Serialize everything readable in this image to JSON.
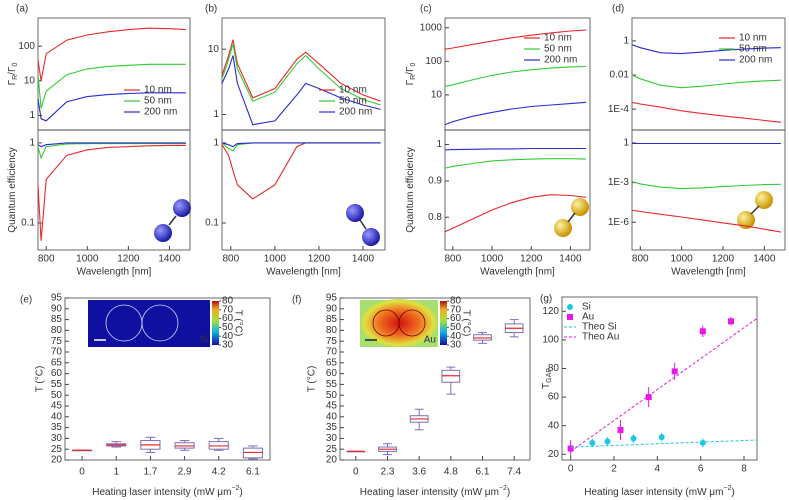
{
  "chart_data": [
    {
      "type": "line",
      "panel": "(a)",
      "yscale": "log",
      "legend": "lower right",
      "ylabel_parts": [
        "Γ",
        "R",
        "/Γ",
        "0"
      ],
      "xlim": [
        760,
        1500
      ],
      "ylim": [
        0.38,
        650
      ],
      "yticks": [
        1,
        10,
        100
      ],
      "x": [
        760,
        775,
        800,
        900,
        1000,
        1100,
        1200,
        1300,
        1400,
        1480
      ],
      "series": [
        {
          "name": "10 nm",
          "color": "#e8292b",
          "values": [
            40,
            10,
            60,
            150,
            210,
            260,
            300,
            330,
            320,
            300
          ]
        },
        {
          "name": "50 nm",
          "color": "#33cc33",
          "values": [
            15,
            1.6,
            5,
            15,
            22,
            26,
            28,
            30,
            30,
            30
          ]
        },
        {
          "name": "200 nm",
          "color": "#2a2ad0",
          "values": [
            3,
            0.8,
            0.7,
            2.5,
            3.5,
            4,
            4.3,
            4.5,
            4.5,
            4.5
          ]
        }
      ]
    },
    {
      "type": "line",
      "yscale": "log",
      "ylabel_parts": [
        "Quantum efficiency"
      ],
      "xlabel": "Wavelength [nm]",
      "xlim": [
        760,
        1500
      ],
      "ylim": [
        0.046,
        1.45
      ],
      "yticks": [
        0.1,
        1
      ],
      "xticks": [
        800,
        1000,
        1200,
        1400
      ],
      "x": [
        760,
        775,
        800,
        900,
        1000,
        1100,
        1200,
        1300,
        1400,
        1480
      ],
      "series": [
        {
          "color": "#e8292b",
          "values": [
            0.3,
            0.06,
            0.35,
            0.7,
            0.82,
            0.88,
            0.9,
            0.92,
            0.93,
            0.93
          ]
        },
        {
          "color": "#33cc33",
          "values": [
            0.9,
            0.65,
            0.9,
            0.97,
            0.98,
            0.98,
            0.98,
            0.98,
            0.98,
            0.98
          ]
        },
        {
          "color": "#2a2ad0",
          "values": [
            0.95,
            0.9,
            0.95,
            1,
            1,
            1,
            1,
            1,
            1,
            1
          ]
        }
      ]
    },
    {
      "type": "line",
      "panel": "(b)",
      "yscale": "log",
      "legend": "lower right",
      "xlim": [
        760,
        1500
      ],
      "ylim": [
        0.58,
        30
      ],
      "yticks": [
        1,
        10
      ],
      "x": [
        760,
        790,
        810,
        830,
        900,
        1000,
        1100,
        1140,
        1200,
        1300,
        1400,
        1480
      ],
      "series": [
        {
          "name": "10 nm",
          "color": "#e8292b",
          "values": [
            4,
            8,
            14,
            6,
            1.8,
            2.5,
            7,
            9,
            6,
            3,
            2,
            1.6
          ]
        },
        {
          "name": "50 nm",
          "color": "#33cc33",
          "values": [
            3.5,
            7,
            12,
            5,
            1.6,
            2.2,
            6,
            8,
            5,
            2.5,
            1.7,
            1.4
          ]
        },
        {
          "name": "200 nm",
          "color": "#2a2ad0",
          "values": [
            3,
            5,
            8,
            3,
            0.7,
            0.8,
            2,
            3,
            2.5,
            1.8,
            1.4,
            1.2
          ]
        }
      ]
    },
    {
      "type": "line",
      "yscale": "log",
      "xlabel": "Wavelength [nm]",
      "xlim": [
        760,
        1500
      ],
      "ylim": [
        0.046,
        1.45
      ],
      "yticks": [
        0.1,
        1
      ],
      "xticks": [
        800,
        1000,
        1200,
        1400
      ],
      "x": [
        760,
        790,
        810,
        830,
        900,
        1000,
        1100,
        1140,
        1200,
        1300,
        1400,
        1480
      ],
      "series": [
        {
          "color": "#e8292b",
          "values": [
            0.95,
            0.7,
            0.45,
            0.3,
            0.2,
            0.3,
            0.9,
            1,
            1,
            1,
            1,
            1
          ]
        },
        {
          "color": "#33cc33",
          "values": [
            1,
            0.85,
            0.8,
            0.95,
            1,
            1,
            1,
            1,
            1,
            1,
            1,
            1
          ]
        },
        {
          "color": "#2a2ad0",
          "values": [
            1,
            0.95,
            0.9,
            0.98,
            1,
            1,
            1,
            1,
            1,
            1,
            1,
            1
          ]
        }
      ]
    },
    {
      "type": "line",
      "panel": "(c)",
      "yscale": "log",
      "legend": "upper right",
      "ylabel_parts": [
        "Γ",
        "R",
        "/Γ",
        "0"
      ],
      "xlim": [
        760,
        1500
      ],
      "ylim": [
        0.9,
        1950
      ],
      "yticks": [
        10,
        100,
        1000
      ],
      "x": [
        760,
        800,
        900,
        1000,
        1100,
        1200,
        1300,
        1400,
        1480
      ],
      "series": [
        {
          "name": "10 nm",
          "color": "#e8292b",
          "values": [
            230,
            250,
            320,
            400,
            500,
            600,
            700,
            800,
            850
          ]
        },
        {
          "name": "50 nm",
          "color": "#33cc33",
          "values": [
            18,
            20,
            28,
            38,
            48,
            56,
            63,
            68,
            70
          ]
        },
        {
          "name": "200 nm",
          "color": "#2a2ad0",
          "values": [
            1.3,
            1.6,
            2.3,
            3,
            3.8,
            4.5,
            5,
            5.5,
            6
          ]
        }
      ]
    },
    {
      "type": "line",
      "yscale": "linear",
      "ylabel_parts": [
        "Quantum efficiency"
      ],
      "xlabel": "Wavelength [nm]",
      "xlim": [
        760,
        1500
      ],
      "ylim": [
        0.71,
        1.04
      ],
      "yticks": [
        0.8,
        0.9,
        1
      ],
      "xticks": [
        800,
        1000,
        1200,
        1400
      ],
      "x": [
        760,
        800,
        900,
        1000,
        1100,
        1200,
        1300,
        1400,
        1480
      ],
      "series": [
        {
          "color": "#e8292b",
          "values": [
            0.76,
            0.77,
            0.795,
            0.82,
            0.84,
            0.855,
            0.862,
            0.86,
            0.855
          ]
        },
        {
          "color": "#33cc33",
          "values": [
            0.935,
            0.94,
            0.948,
            0.955,
            0.958,
            0.96,
            0.961,
            0.961,
            0.96
          ]
        },
        {
          "color": "#2a2ad0",
          "values": [
            0.985,
            0.986,
            0.987,
            0.988,
            0.988,
            0.989,
            0.989,
            0.989,
            0.989
          ]
        }
      ]
    },
    {
      "type": "line",
      "panel": "(d)",
      "yscale": "log",
      "legend": "upper right",
      "xlim": [
        760,
        1500
      ],
      "ylim": [
        6e-06,
        22
      ],
      "yticks": [
        {
          "value": 0.0001,
          "label": "1E-4"
        },
        0.01,
        1
      ],
      "x": [
        760,
        800,
        900,
        1000,
        1100,
        1200,
        1300,
        1400,
        1480
      ],
      "series": [
        {
          "name": "10 nm",
          "color": "#e8292b",
          "values": [
            0.00025,
            0.0002,
            0.00013,
            8e-05,
            5.5e-05,
            4e-05,
            3e-05,
            2.2e-05,
            1.7e-05
          ]
        },
        {
          "name": "50 nm",
          "color": "#33cc33",
          "values": [
            0.01,
            0.006,
            0.0025,
            0.0018,
            0.0022,
            0.003,
            0.0038,
            0.0045,
            0.005
          ]
        },
        {
          "name": "200 nm",
          "color": "#2a2ad0",
          "values": [
            0.6,
            0.4,
            0.2,
            0.18,
            0.22,
            0.28,
            0.33,
            0.38,
            0.4
          ]
        }
      ]
    },
    {
      "type": "line",
      "yscale": "log",
      "xlabel": "Wavelength [nm]",
      "xlim": [
        760,
        1500
      ],
      "ylim": [
        8e-09,
        9.5
      ],
      "yticks": [
        {
          "value": 1e-06,
          "label": "1E-6"
        },
        {
          "value": 0.001,
          "label": "1E-3"
        },
        1
      ],
      "xticks": [
        800,
        1000,
        1200,
        1400
      ],
      "x": [
        760,
        800,
        900,
        1000,
        1100,
        1200,
        1300,
        1400,
        1480
      ],
      "series": [
        {
          "color": "#e8292b",
          "values": [
            8e-06,
            6.5e-06,
            4e-06,
            2.5e-06,
            1.5e-06,
            9e-07,
            5.5e-07,
            3e-07,
            1.8e-07
          ]
        },
        {
          "color": "#33cc33",
          "values": [
            0.0012,
            0.0008,
            0.00045,
            0.00035,
            0.0004,
            0.0005,
            0.0006,
            0.0007,
            0.00075
          ]
        },
        {
          "color": "#2a2ad0",
          "values": [
            0.9,
            0.9,
            0.9,
            0.9,
            0.9,
            0.9,
            0.9,
            0.9,
            0.9
          ]
        }
      ]
    },
    {
      "type": "box",
      "panel": "(e)",
      "ylabel": "T (°C)",
      "xlabel_parts": [
        "Heating laser intensity (mW μm",
        "−2",
        ")"
      ],
      "categories": [
        "0",
        "1",
        "1.7",
        "2.9",
        "4.2",
        "6.1"
      ],
      "ylim": [
        20,
        95
      ],
      "yticks": [
        20,
        25,
        30,
        35,
        40,
        45,
        50,
        55,
        60,
        65,
        70,
        75,
        80,
        85,
        90,
        95
      ],
      "box_color": "#7b6fb5",
      "median_color": "#e8292b",
      "boxes": [
        [
          24.5,
          24.5,
          24.5,
          24.5,
          24.5
        ],
        [
          26,
          26.5,
          27,
          27.5,
          28.5
        ],
        [
          23.5,
          25,
          27,
          29,
          30.5
        ],
        [
          24.5,
          25.5,
          26.5,
          28,
          29
        ],
        [
          24.5,
          25,
          26.5,
          28.5,
          30
        ],
        [
          20.5,
          21,
          23.5,
          25.5,
          26.5
        ]
      ],
      "inset": {
        "label": "Si",
        "colorbar_label": "T (°C)",
        "colorbar_lim": [
          30,
          80
        ],
        "colorbar_ticks": [
          30,
          40,
          50,
          60,
          70,
          80
        ]
      }
    },
    {
      "type": "box",
      "panel": "(f)",
      "ylabel": "T (°C)",
      "xlabel_parts": [
        "Heating laser intensity (mW μm",
        "−2",
        ")"
      ],
      "categories": [
        "0",
        "2.3",
        "3.6",
        "4.8",
        "6.1",
        "7.4"
      ],
      "ylim": [
        20,
        95
      ],
      "yticks": [
        20,
        25,
        30,
        35,
        40,
        45,
        50,
        55,
        60,
        65,
        70,
        75,
        80,
        85,
        90,
        95
      ],
      "box_color": "#7b6fb5",
      "median_color": "#e8292b",
      "boxes": [
        [
          24,
          24,
          24,
          24,
          24
        ],
        [
          22.5,
          24,
          25,
          26,
          27.5
        ],
        [
          34,
          37.5,
          39,
          40.5,
          43.5
        ],
        [
          50.5,
          56,
          59,
          61.5,
          63
        ],
        [
          74,
          75.5,
          76.5,
          78,
          79
        ],
        [
          77,
          79,
          81,
          83,
          85
        ]
      ],
      "inset": {
        "label": "Au",
        "colorbar_label": "T (°C)",
        "colorbar_lim": [
          30,
          80
        ],
        "colorbar_ticks": [
          30,
          40,
          50,
          60,
          70,
          80
        ]
      }
    },
    {
      "type": "scatter",
      "panel": "(g)",
      "ylabel_parts": [
        "T",
        "GAP"
      ],
      "xlabel_parts": [
        "Heating laser intensity (mW μm",
        "−2",
        ")"
      ],
      "legend": "upper left",
      "xlim": [
        -0.4,
        8.6
      ],
      "ylim": [
        16,
        130
      ],
      "xticks": [
        0,
        2,
        4,
        6,
        8
      ],
      "yticks": [
        20,
        40,
        60,
        80,
        100,
        120
      ],
      "series": [
        {
          "name": "Si",
          "color": "#19c8e6",
          "style": "points",
          "x": [
            0,
            1,
            1.7,
            2.9,
            4.2,
            6.1
          ],
          "values": [
            24,
            28,
            29,
            31,
            32,
            28
          ],
          "errors": [
            3,
            3,
            3,
            3,
            3,
            3
          ]
        },
        {
          "name": "Au",
          "color": "#e619e6",
          "style": "points",
          "x": [
            0,
            2.3,
            3.6,
            4.8,
            6.1,
            7.4
          ],
          "values": [
            24,
            37,
            60,
            78,
            106,
            113
          ],
          "errors": [
            6,
            7,
            7,
            6,
            4,
            3
          ]
        },
        {
          "name": "Theo Si",
          "color": "#19c8e6",
          "style": "dash",
          "x": [
            0,
            8.6
          ],
          "values": [
            25,
            30
          ]
        },
        {
          "name": "Theo Au",
          "color": "#e619e6",
          "style": "dash",
          "x": [
            0,
            8.6
          ],
          "values": [
            22,
            115
          ]
        }
      ]
    }
  ]
}
